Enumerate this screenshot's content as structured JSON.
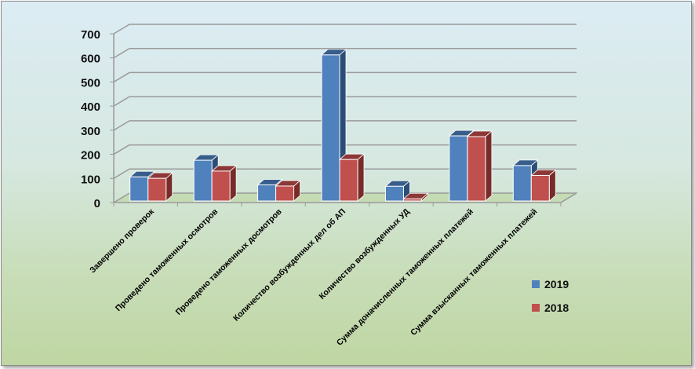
{
  "chart_data": {
    "type": "bar",
    "style": "3d-clustered-column",
    "categories": [
      "Завершено проверок",
      "Проведено таможенных осмотров",
      "Проведено таможенных досмотров",
      "Количество возбужденных дел об АП",
      "Количество возбужденных УД",
      "Сумма доначисленных таможенных платежей",
      "Сумма взысканных таможенных платежей"
    ],
    "series": [
      {
        "name": "2019",
        "color": "#4f81bd",
        "values": [
          100,
          169,
          67,
          606,
          61,
          270,
          147
        ]
      },
      {
        "name": "2018",
        "color": "#c0504d",
        "values": [
          94,
          124,
          62,
          172,
          9,
          267,
          106
        ]
      }
    ],
    "ylim": [
      0,
      700
    ],
    "yticks": [
      "0",
      "100",
      "200",
      "300",
      "400",
      "500",
      "600",
      "700"
    ],
    "grid": true,
    "legend": "right",
    "title": "",
    "xlabel": "",
    "ylabel": ""
  }
}
